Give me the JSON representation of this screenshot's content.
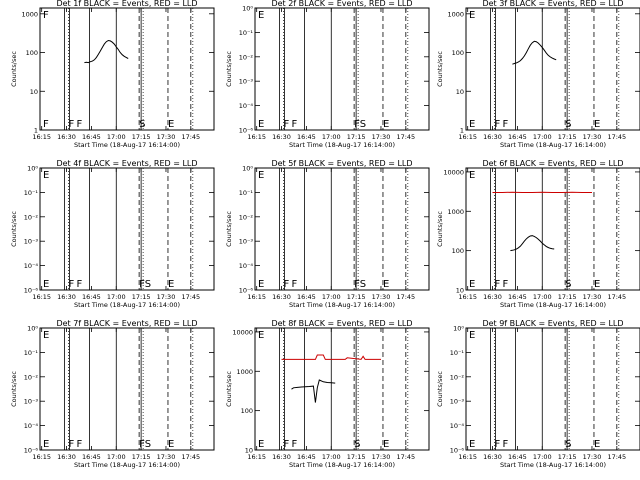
{
  "chart_data": [
    {
      "type": "line",
      "title": "Det 1f BLACK = Events, RED = LLD",
      "xlabel": "Start Time (18-Aug-17 16:14:00)",
      "ylabel": "Counts/sec",
      "yticks": [
        "1",
        "10",
        "100",
        "1000"
      ],
      "ylim_decades": [
        0,
        3.15
      ],
      "markers": [
        "F",
        "F",
        "F",
        "S",
        "E"
      ],
      "series": [
        {
          "name": "Events",
          "color": "#000000",
          "x": [
            16.68,
            16.7,
            16.72,
            16.74,
            16.76,
            16.78,
            16.8,
            16.82,
            16.84,
            16.86,
            16.88,
            16.9,
            16.92,
            16.94,
            16.96,
            16.98,
            17.0,
            17.02,
            17.04,
            17.06,
            17.08,
            17.1,
            17.12
          ],
          "y": [
            55,
            56,
            55,
            58,
            60,
            65,
            75,
            90,
            110,
            135,
            165,
            190,
            205,
            200,
            185,
            165,
            140,
            120,
            100,
            88,
            80,
            75,
            70
          ]
        }
      ]
    },
    {
      "type": "line",
      "title": "Det 2f BLACK = Events, RED = LLD",
      "xlabel": "Start Time (18-Aug-17 16:14:00)",
      "ylabel": "Counts/sec",
      "yticks": [
        "10⁻⁶",
        "10⁻⁴",
        "10⁻³",
        "10⁻²",
        "10⁻¹",
        "10⁰"
      ],
      "ylim_decades": [
        -6,
        0
      ],
      "markers": [
        "E",
        "F",
        "F",
        "FS",
        "E"
      ],
      "series": []
    },
    {
      "type": "line",
      "title": "Det 3f BLACK = Events, RED = LLD",
      "xlabel": "Start Time (18-Aug-17 16:14:00)",
      "ylabel": "Counts/sec",
      "yticks": [
        "1",
        "10",
        "100",
        "1000"
      ],
      "ylim_decades": [
        0,
        3.15
      ],
      "markers": [
        "E",
        "F",
        "F",
        "S",
        "E"
      ],
      "series": [
        {
          "name": "Events",
          "color": "#000000",
          "x": [
            16.7,
            16.72,
            16.74,
            16.76,
            16.78,
            16.8,
            16.82,
            16.84,
            16.86,
            16.88,
            16.9,
            16.92,
            16.94,
            16.96,
            16.98,
            17.0,
            17.02,
            17.04,
            17.06,
            17.08,
            17.1,
            17.12,
            17.14
          ],
          "y": [
            50,
            52,
            54,
            57,
            62,
            70,
            82,
            100,
            125,
            155,
            180,
            195,
            190,
            175,
            155,
            135,
            115,
            98,
            85,
            77,
            72,
            68,
            65
          ]
        }
      ]
    },
    {
      "type": "line",
      "title": "Det 4f BLACK = Events, RED = LLD",
      "xlabel": "Start Time (18-Aug-17 16:14:00)",
      "ylabel": "Counts/sec",
      "yticks": [
        "10⁻⁶",
        "10⁻⁴",
        "10⁻³",
        "10⁻²",
        "10⁻¹",
        "10⁰"
      ],
      "ylim_decades": [
        -6,
        0
      ],
      "markers": [
        "E",
        "F",
        "F",
        "FS",
        "E"
      ],
      "series": []
    },
    {
      "type": "line",
      "title": "Det 5f BLACK = Events, RED = LLD",
      "xlabel": "Start Time (18-Aug-17 16:14:00)",
      "ylabel": "Counts/sec",
      "yticks": [
        "10⁻⁶",
        "10⁻⁴",
        "10⁻³",
        "10⁻²",
        "10⁻¹",
        "10⁰"
      ],
      "ylim_decades": [
        -6,
        0
      ],
      "markers": [
        "E",
        "F",
        "F",
        "FS",
        "E"
      ],
      "series": []
    },
    {
      "type": "line",
      "title": "Det 6f BLACK = Events, RED = LLD",
      "xlabel": "Start Time (18-Aug-17 16:14:00)",
      "ylabel": "Counts/sec",
      "yticks": [
        "10",
        "100",
        "1000",
        "10000"
      ],
      "ylim_decades": [
        1,
        4.1
      ],
      "markers": [
        "E",
        "F",
        "F",
        "S",
        "E"
      ],
      "series": [
        {
          "name": "LLD",
          "color": "#cc0000",
          "x": [
            16.5,
            16.6,
            16.7,
            16.8,
            16.9,
            17.0,
            17.1,
            17.2,
            17.3,
            17.4,
            17.5
          ],
          "y": [
            3000,
            3000,
            3050,
            3000,
            3000,
            3050,
            3000,
            3000,
            3050,
            3000,
            3000
          ]
        },
        {
          "name": "Events",
          "color": "#000000",
          "x": [
            16.68,
            16.7,
            16.72,
            16.74,
            16.76,
            16.78,
            16.8,
            16.82,
            16.84,
            16.86,
            16.88,
            16.9,
            16.92,
            16.94,
            16.96,
            16.98,
            17.0,
            17.02,
            17.04,
            17.06,
            17.08,
            17.1,
            17.12
          ],
          "y": [
            100,
            102,
            105,
            110,
            118,
            130,
            150,
            175,
            200,
            220,
            235,
            240,
            230,
            215,
            195,
            175,
            155,
            140,
            128,
            120,
            115,
            112,
            110
          ]
        }
      ]
    },
    {
      "type": "line",
      "title": "Det 7f BLACK = Events, RED = LLD",
      "xlabel": "Start Time (18-Aug-17 16:14:00)",
      "ylabel": "Counts/sec",
      "yticks": [
        "10⁻⁶",
        "10⁻⁴",
        "10⁻³",
        "10⁻²",
        "10⁻¹",
        "10⁰"
      ],
      "ylim_decades": [
        -6,
        0
      ],
      "markers": [
        "E",
        "F",
        "F",
        "FS",
        "E"
      ],
      "series": []
    },
    {
      "type": "line",
      "title": "Det 8f BLACK = Events, RED = LLD",
      "xlabel": "Start Time (18-Aug-17 16:14:00)",
      "ylabel": "Counts/sec",
      "yticks": [
        "10",
        "100",
        "1000",
        "10000"
      ],
      "ylim_decades": [
        1,
        4.1
      ],
      "markers": [
        "E",
        "F",
        "F",
        "S",
        "E"
      ],
      "series": [
        {
          "name": "LLD",
          "color": "#cc0000",
          "x": [
            16.5,
            16.7,
            16.84,
            16.86,
            16.92,
            16.94,
            17.1,
            17.14,
            17.16,
            17.3,
            17.32,
            17.34,
            17.5
          ],
          "y": [
            2000,
            2000,
            2000,
            2600,
            2600,
            2000,
            2000,
            2000,
            2200,
            2000,
            2400,
            2000,
            2000
          ]
        },
        {
          "name": "Events",
          "color": "#000000",
          "x": [
            16.6,
            16.62,
            16.66,
            16.7,
            16.74,
            16.78,
            16.82,
            16.84,
            16.86,
            16.88,
            16.92,
            16.96,
            17.0,
            17.04
          ],
          "y": [
            350,
            380,
            390,
            400,
            405,
            410,
            420,
            160,
            380,
            600,
            540,
            520,
            510,
            500
          ]
        }
      ]
    },
    {
      "type": "line",
      "title": "Det 9f BLACK = Events, RED = LLD",
      "xlabel": "Start Time (18-Aug-17 16:14:00)",
      "ylabel": "Counts/sec",
      "yticks": [
        "10⁻⁶",
        "10⁻⁴",
        "10⁻³",
        "10⁻²",
        "10⁻¹",
        "10⁰"
      ],
      "ylim_decades": [
        -6,
        0
      ],
      "markers": [
        "E",
        "F",
        "F",
        "S",
        "E"
      ],
      "series": []
    }
  ],
  "shared": {
    "xticks": [
      "16:15",
      "16:30",
      "16:45",
      "17:00",
      "17:15",
      "17:30",
      "17:45"
    ],
    "xrange_hours": [
      16.233,
      17.983
    ],
    "xtick_hours": [
      16.25,
      16.5,
      16.75,
      17.0,
      17.25,
      17.5,
      17.75
    ],
    "events": [
      {
        "x": 16.48,
        "style": "solid"
      },
      {
        "x": 16.53,
        "style": "solid"
      },
      {
        "x": 16.73,
        "style": "solid"
      },
      {
        "x": 17.0,
        "style": "solid"
      },
      {
        "x": 17.23,
        "style": "dashed"
      },
      {
        "x": 17.25,
        "style": "solid"
      },
      {
        "x": 17.52,
        "style": "dashed"
      },
      {
        "x": 17.75,
        "style": "dashed"
      }
    ],
    "dotted_x": [
      16.5,
      17.25,
      17.75
    ]
  }
}
